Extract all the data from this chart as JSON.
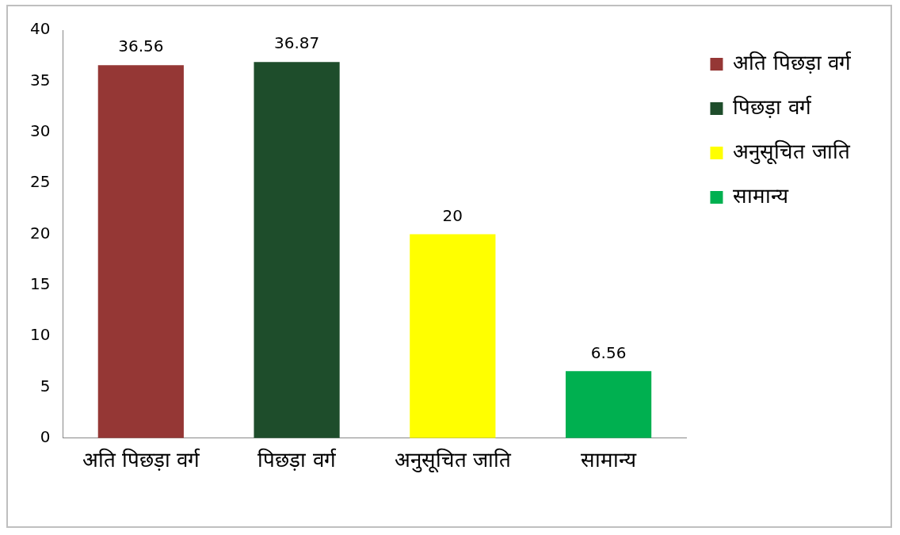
{
  "chart_data": {
    "type": "bar",
    "categories": [
      "अति पिछड़ा वर्ग",
      "पिछड़ा वर्ग",
      "अनुसूचित जाति",
      "सामान्य"
    ],
    "series": [
      {
        "name": "अति पिछड़ा वर्ग",
        "color": "#953735",
        "values": [
          36.56,
          null,
          null,
          null
        ]
      },
      {
        "name": "पिछड़ा वर्ग",
        "color": "#1e4d2b",
        "values": [
          null,
          36.87,
          null,
          null
        ]
      },
      {
        "name": "अनुसूचित जाति",
        "color": "#ffff00",
        "values": [
          null,
          null,
          20,
          null
        ]
      },
      {
        "name": "सामान्य",
        "color": "#00b050",
        "values": [
          null,
          null,
          null,
          6.56
        ]
      }
    ],
    "ylim": [
      0,
      40
    ],
    "yticks": [
      0,
      5,
      10,
      15,
      20,
      25,
      30,
      35,
      40
    ],
    "grid": false,
    "legend": "right",
    "data_labels": true
  }
}
